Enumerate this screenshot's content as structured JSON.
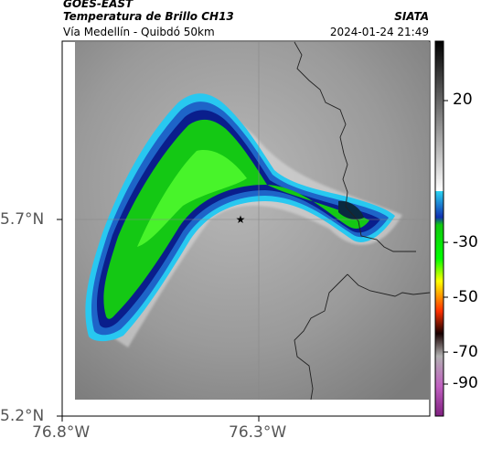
{
  "header": {
    "satellite": "GOES-EAST",
    "product": "Temperatura de Brillo CH13",
    "region": "Vía Medellín - Quibdó 50km",
    "agency": "SIATA",
    "datetime": "2024-01-24 21:49"
  },
  "map": {
    "lat_ticks": [
      "5.7°N",
      "5.2°N"
    ],
    "lon_ticks": [
      "76.8°W",
      "76.3°W"
    ],
    "marker_icon": "star-icon",
    "colors": {
      "cold_core": "#00e600",
      "dark_band": "#0a1e8c",
      "mid_blue": "#1e64c8",
      "cyan_edge": "#28c8f0",
      "warm_gray": "#8c8c8c"
    }
  },
  "colorbar": {
    "ticks": [
      "20",
      "-30",
      "-50",
      "-70",
      "-90"
    ]
  }
}
